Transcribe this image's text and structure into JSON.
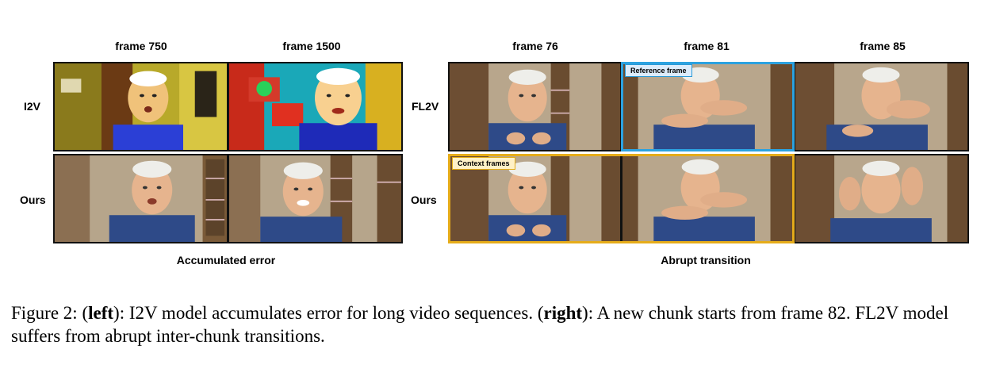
{
  "left_figure": {
    "frame_labels": [
      "frame 750",
      "frame 1500"
    ],
    "row_labels": [
      "I2V",
      "Ours"
    ],
    "bottom_label": "Accumulated error"
  },
  "right_figure": {
    "frame_labels": [
      "frame 76",
      "frame 81",
      "frame 85"
    ],
    "row_labels": [
      "FL2V",
      "Ours"
    ],
    "bottom_label": "Abrupt transition",
    "reference_tag": "Reference frame",
    "context_tag": "Context frames",
    "colors": {
      "reference": "#2ca2e0",
      "context": "#e6ac1a"
    }
  },
  "caption": {
    "prefix": "Figure 2: (",
    "left_word": "left",
    "mid1": "): I2V model accumulates error for long video sequences. (",
    "right_word": "right",
    "mid2": "): A new chunk starts from frame 82. FL2V model suffers from abrupt inter-chunk transitions."
  }
}
